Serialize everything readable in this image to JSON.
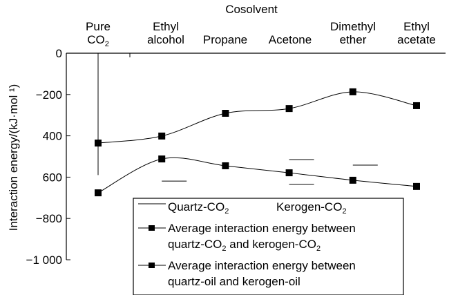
{
  "chart_data": {
    "type": "line",
    "title": "Cosolvent",
    "xlabel": "",
    "ylabel": "Interaction energy/(kJ·mol⁻¹)",
    "ylabel_display": "Interaction energy/(kJ·mol ¹)",
    "ylim": [
      -1000,
      0
    ],
    "yticks": [
      0,
      -200,
      -400,
      -600,
      -800,
      -1000
    ],
    "ytick_labels": [
      "0",
      "−200",
      "400",
      "600",
      "−800",
      "−1 000"
    ],
    "categories": [
      {
        "line1": "Pure",
        "line2": "CO",
        "sub": "2"
      },
      {
        "line1": "Ethyl",
        "line2": "alcohol",
        "sub": ""
      },
      {
        "line1": "",
        "line2": "Propane",
        "sub": ""
      },
      {
        "line1": "",
        "line2": "Acetone",
        "sub": ""
      },
      {
        "line1": "Dimethyl",
        "line2": "ether",
        "sub": ""
      },
      {
        "line1": "Ethyl",
        "line2": "acetate",
        "sub": ""
      }
    ],
    "series": [
      {
        "name": "Average interaction energy between quartz-CO2 and kerogen-CO2",
        "values": [
          -435,
          -401,
          -291,
          -268,
          -187,
          -254
        ]
      },
      {
        "name": "Average interaction energy between quartz-oil and kerogen-oil",
        "values": [
          -676,
          -512,
          -545,
          -579,
          -615,
          -645
        ]
      }
    ],
    "error_bar": {
      "category": "Pure CO2",
      "from": 0,
      "to": -590
    },
    "short_segments": [
      {
        "category_index": 1,
        "value": -619
      },
      {
        "category_index": 3,
        "value": -515
      },
      {
        "category_index": 3,
        "value": -635
      },
      {
        "category_index": 4,
        "value": -542
      }
    ],
    "legend": {
      "placement": "bottom-right",
      "entries": [
        {
          "label": "Quartz-CO",
          "sub": "2",
          "style": "line"
        },
        {
          "label": "Kerogen-CO",
          "sub": "2",
          "style": "none"
        },
        {
          "label1": "Average interaction energy between",
          "label2a": "quartz-CO",
          "sub2a": "2",
          "label2b": " and kerogen-CO",
          "sub2b": "2",
          "style": "line-marker"
        },
        {
          "label1": "Average interaction energy between",
          "label2": "quartz-oil and kerogen-oil",
          "style": "line-marker"
        }
      ]
    },
    "grid": false
  }
}
